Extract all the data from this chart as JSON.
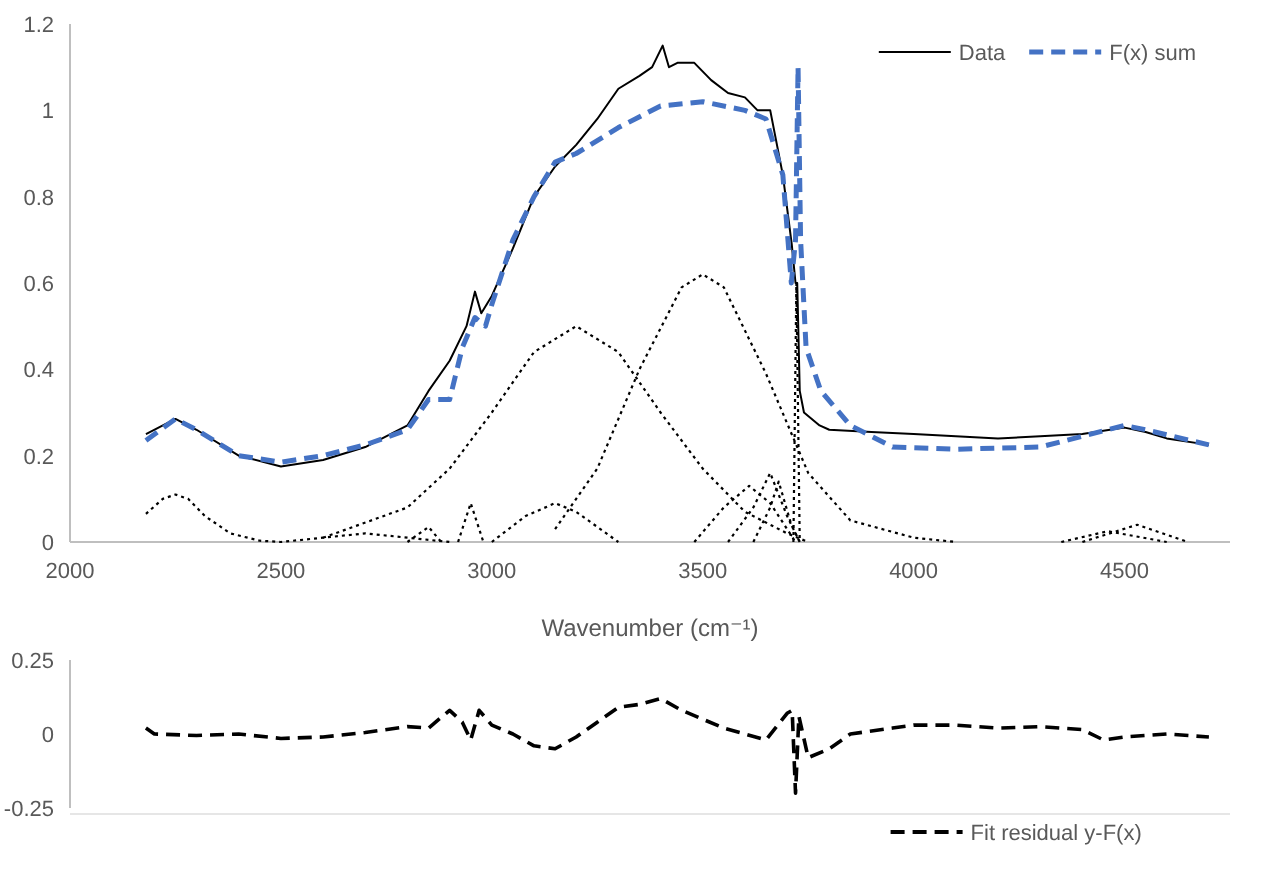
{
  "chart_data": [
    {
      "type": "line",
      "xlabel": "Wavenumber (cm⁻¹)",
      "xlim": [
        2000,
        4750
      ],
      "xticks": [
        2000,
        2500,
        3000,
        3500,
        4000,
        4500
      ],
      "ylim": [
        0,
        1.2
      ],
      "yticks": [
        0,
        0.2,
        0.4,
        0.6,
        0.8,
        1,
        1.2
      ],
      "grid": false,
      "legend": "top right",
      "marker": "none",
      "series": [
        {
          "name": "Data",
          "color": "#000000",
          "line_style": "solid",
          "x": [
            2180,
            2250,
            2300,
            2400,
            2500,
            2600,
            2700,
            2800,
            2850,
            2900,
            2940,
            2960,
            2975,
            3000,
            3050,
            3100,
            3150,
            3200,
            3250,
            3300,
            3350,
            3380,
            3405,
            3420,
            3440,
            3480,
            3520,
            3560,
            3600,
            3630,
            3660,
            3690,
            3711,
            3720,
            3724,
            3730,
            3740,
            3777,
            3800,
            3900,
            4000,
            4100,
            4200,
            4300,
            4400,
            4500,
            4550,
            4600,
            4700
          ],
          "values": [
            0.25,
            0.285,
            0.26,
            0.2,
            0.175,
            0.19,
            0.22,
            0.27,
            0.35,
            0.42,
            0.5,
            0.58,
            0.53,
            0.57,
            0.68,
            0.8,
            0.87,
            0.92,
            0.98,
            1.05,
            1.08,
            1.1,
            1.15,
            1.1,
            1.11,
            1.11,
            1.07,
            1.04,
            1.03,
            1.0,
            1.0,
            0.85,
            0.69,
            0.6,
            0.6,
            0.35,
            0.3,
            0.27,
            0.26,
            0.255,
            0.25,
            0.245,
            0.24,
            0.245,
            0.25,
            0.265,
            0.255,
            0.24,
            0.225
          ]
        },
        {
          "name": "F(x) sum",
          "color": "#4472c4",
          "line_style": "dashed",
          "x": [
            2180,
            2250,
            2300,
            2400,
            2500,
            2600,
            2700,
            2800,
            2850,
            2900,
            2930,
            2960,
            2985,
            3000,
            3050,
            3100,
            3150,
            3200,
            3300,
            3400,
            3500,
            3600,
            3650,
            3690,
            3710,
            3720,
            3726,
            3732,
            3745,
            3780,
            3850,
            3950,
            4100,
            4300,
            4400,
            4500,
            4550,
            4700
          ],
          "values": [
            0.235,
            0.285,
            0.26,
            0.2,
            0.185,
            0.2,
            0.225,
            0.26,
            0.33,
            0.33,
            0.45,
            0.52,
            0.5,
            0.55,
            0.7,
            0.8,
            0.88,
            0.9,
            0.96,
            1.01,
            1.02,
            1.0,
            0.98,
            0.85,
            0.6,
            0.7,
            1.1,
            0.7,
            0.45,
            0.35,
            0.27,
            0.22,
            0.215,
            0.22,
            0.245,
            0.27,
            0.26,
            0.225
          ]
        },
        {
          "color": "#000000",
          "line_style": "dotted",
          "x": [
            2180,
            2220,
            2250,
            2280,
            2320,
            2380,
            2450,
            2500,
            2600,
            2700,
            2800,
            2900
          ],
          "values": [
            0.065,
            0.1,
            0.11,
            0.1,
            0.06,
            0.02,
            0.003,
            0,
            0.01,
            0.02,
            0.01,
            0
          ]
        },
        {
          "color": "#000000",
          "line_style": "dotted",
          "x": [
            2800,
            2850,
            2880
          ],
          "values": [
            0,
            0.035,
            0
          ]
        },
        {
          "color": "#000000",
          "line_style": "dotted",
          "x": [
            2920,
            2950,
            2980
          ],
          "values": [
            0,
            0.09,
            0
          ]
        },
        {
          "color": "#000000",
          "line_style": "dotted",
          "x": [
            3000,
            3080,
            3150,
            3200,
            3300
          ],
          "values": [
            0,
            0.06,
            0.09,
            0.07,
            0
          ]
        },
        {
          "color": "#000000",
          "line_style": "dotted",
          "x": [
            2600,
            2800,
            2900,
            3000,
            3100,
            3200,
            3300,
            3400,
            3500,
            3600,
            3700,
            3750
          ],
          "values": [
            0.01,
            0.08,
            0.17,
            0.3,
            0.44,
            0.5,
            0.44,
            0.3,
            0.17,
            0.07,
            0.02,
            0
          ]
        },
        {
          "color": "#000000",
          "line_style": "dotted",
          "x": [
            3150,
            3250,
            3350,
            3450,
            3500,
            3550,
            3650,
            3750,
            3850,
            4000,
            4100
          ],
          "values": [
            0.03,
            0.17,
            0.4,
            0.59,
            0.62,
            0.59,
            0.39,
            0.16,
            0.05,
            0.01,
            0
          ]
        },
        {
          "color": "#000000",
          "line_style": "dotted",
          "x": [
            3480,
            3550,
            3610,
            3660,
            3720
          ],
          "values": [
            0,
            0.08,
            0.13,
            0.09,
            0
          ]
        },
        {
          "color": "#000000",
          "line_style": "dotted",
          "x": [
            3560,
            3620,
            3660,
            3700,
            3730
          ],
          "values": [
            0,
            0.08,
            0.16,
            0.06,
            0
          ]
        },
        {
          "color": "#000000",
          "line_style": "dotted",
          "x": [
            3620,
            3660,
            3680,
            3710,
            3730
          ],
          "values": [
            0,
            0.08,
            0.14,
            0.04,
            0
          ]
        },
        {
          "color": "#000000",
          "line_style": "dotted",
          "x": [
            3715,
            3722,
            3730
          ],
          "values": [
            0,
            0.6,
            0
          ]
        },
        {
          "color": "#000000",
          "line_style": "dotted",
          "x": [
            4350,
            4460,
            4600
          ],
          "values": [
            0,
            0.025,
            0
          ]
        },
        {
          "color": "#000000",
          "line_style": "dotted",
          "x": [
            4400,
            4530,
            4650
          ],
          "values": [
            0,
            0.04,
            0
          ]
        }
      ]
    },
    {
      "type": "line",
      "xlim": [
        2000,
        4750
      ],
      "ylim": [
        -0.25,
        0.25
      ],
      "yticks": [
        -0.25,
        0,
        0.25
      ],
      "tick_labels": "y",
      "grid": false,
      "legend": "bottom right",
      "marker": "none",
      "series": [
        {
          "name": "Fit residual y-F(x)",
          "color": "#000000",
          "line_style": "dashed",
          "x": [
            2180,
            2200,
            2300,
            2400,
            2500,
            2600,
            2700,
            2800,
            2850,
            2900,
            2930,
            2950,
            2970,
            3000,
            3050,
            3100,
            3150,
            3200,
            3250,
            3300,
            3350,
            3400,
            3450,
            3500,
            3550,
            3600,
            3650,
            3700,
            3712,
            3720,
            3728,
            3750,
            3800,
            3850,
            3950,
            4000,
            4100,
            4200,
            4300,
            4400,
            4450,
            4500,
            4600,
            4700
          ],
          "values": [
            0.02,
            0,
            -0.005,
            0,
            -0.015,
            -0.01,
            0.005,
            0.025,
            0.02,
            0.08,
            0.04,
            -0.02,
            0.08,
            0.03,
            0,
            -0.04,
            -0.05,
            -0.01,
            0.04,
            0.09,
            0.1,
            0.12,
            0.08,
            0.05,
            0.02,
            0,
            -0.02,
            0.07,
            0.08,
            -0.2,
            0.06,
            -0.08,
            -0.05,
            0,
            0.02,
            0.03,
            0.03,
            0.02,
            0.025,
            0.015,
            -0.02,
            -0.01,
            0,
            -0.01
          ]
        }
      ]
    }
  ]
}
